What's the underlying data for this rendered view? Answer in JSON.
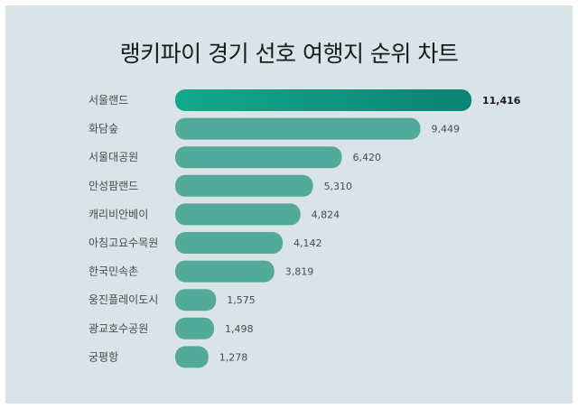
{
  "chart_data": {
    "type": "bar",
    "orientation": "horizontal",
    "title": "랭키파이 경기 선호 여행지 순위 차트",
    "categories": [
      "서울랜드",
      "화담숲",
      "서울대공원",
      "안성팜랜드",
      "캐리비안베이",
      "아침고요수목원",
      "한국민속촌",
      "웅진플레이도시",
      "광교호수공원",
      "궁평항"
    ],
    "values": [
      11416,
      9449,
      6420,
      5310,
      4824,
      4142,
      3819,
      1575,
      1498,
      1278
    ],
    "value_labels": [
      "11,416",
      "9,449",
      "6,420",
      "5,310",
      "4,824",
      "4,142",
      "3,819",
      "1,575",
      "1,498",
      "1,278"
    ],
    "xlabel": "",
    "ylabel": "",
    "xlim": [
      0,
      11416
    ],
    "grid": false,
    "colors": {
      "bar": "#52ab9a",
      "top_bar_start": "#12a98a",
      "top_bar_end": "#0b8374",
      "background": "#d9e3e8"
    }
  }
}
